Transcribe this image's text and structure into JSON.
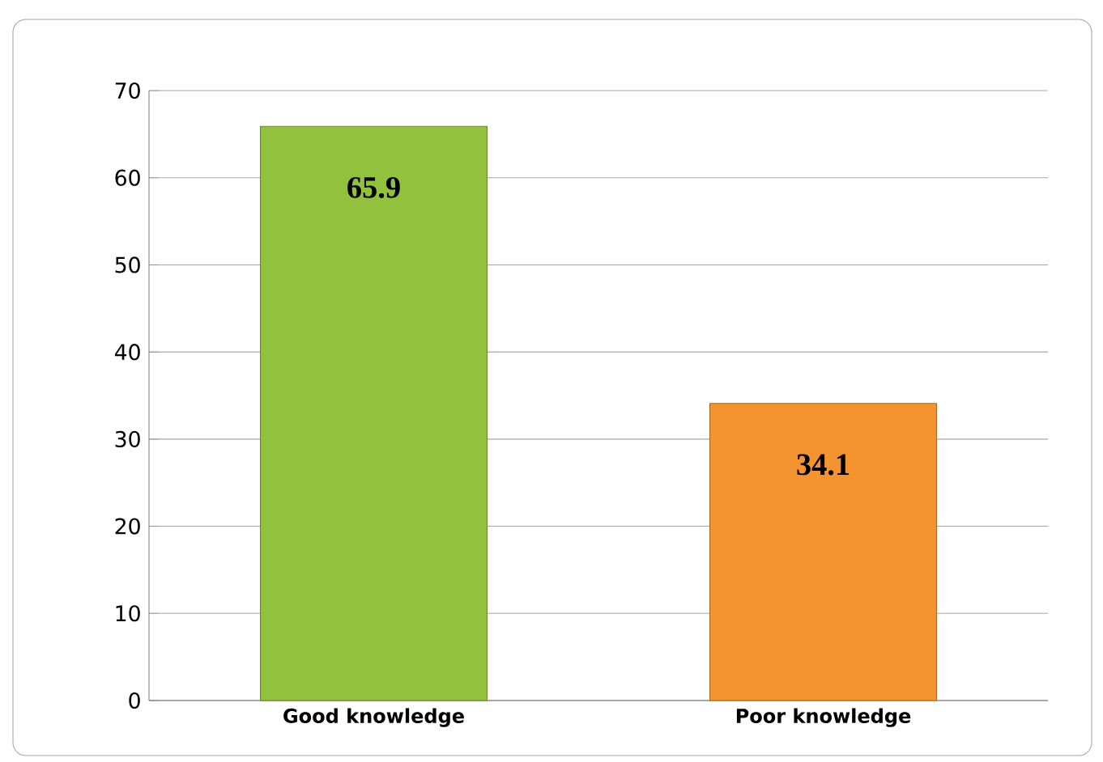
{
  "chart_data": {
    "type": "bar",
    "categories": [
      "Good knowledge",
      "Poor knowledge"
    ],
    "values": [
      65.9,
      34.1
    ],
    "colors": [
      "#92c13e",
      "#f39430"
    ],
    "ylim": [
      0,
      70
    ],
    "yticks": [
      0,
      10,
      20,
      30,
      40,
      50,
      60,
      70
    ],
    "grid": "y",
    "data_labels": true
  }
}
